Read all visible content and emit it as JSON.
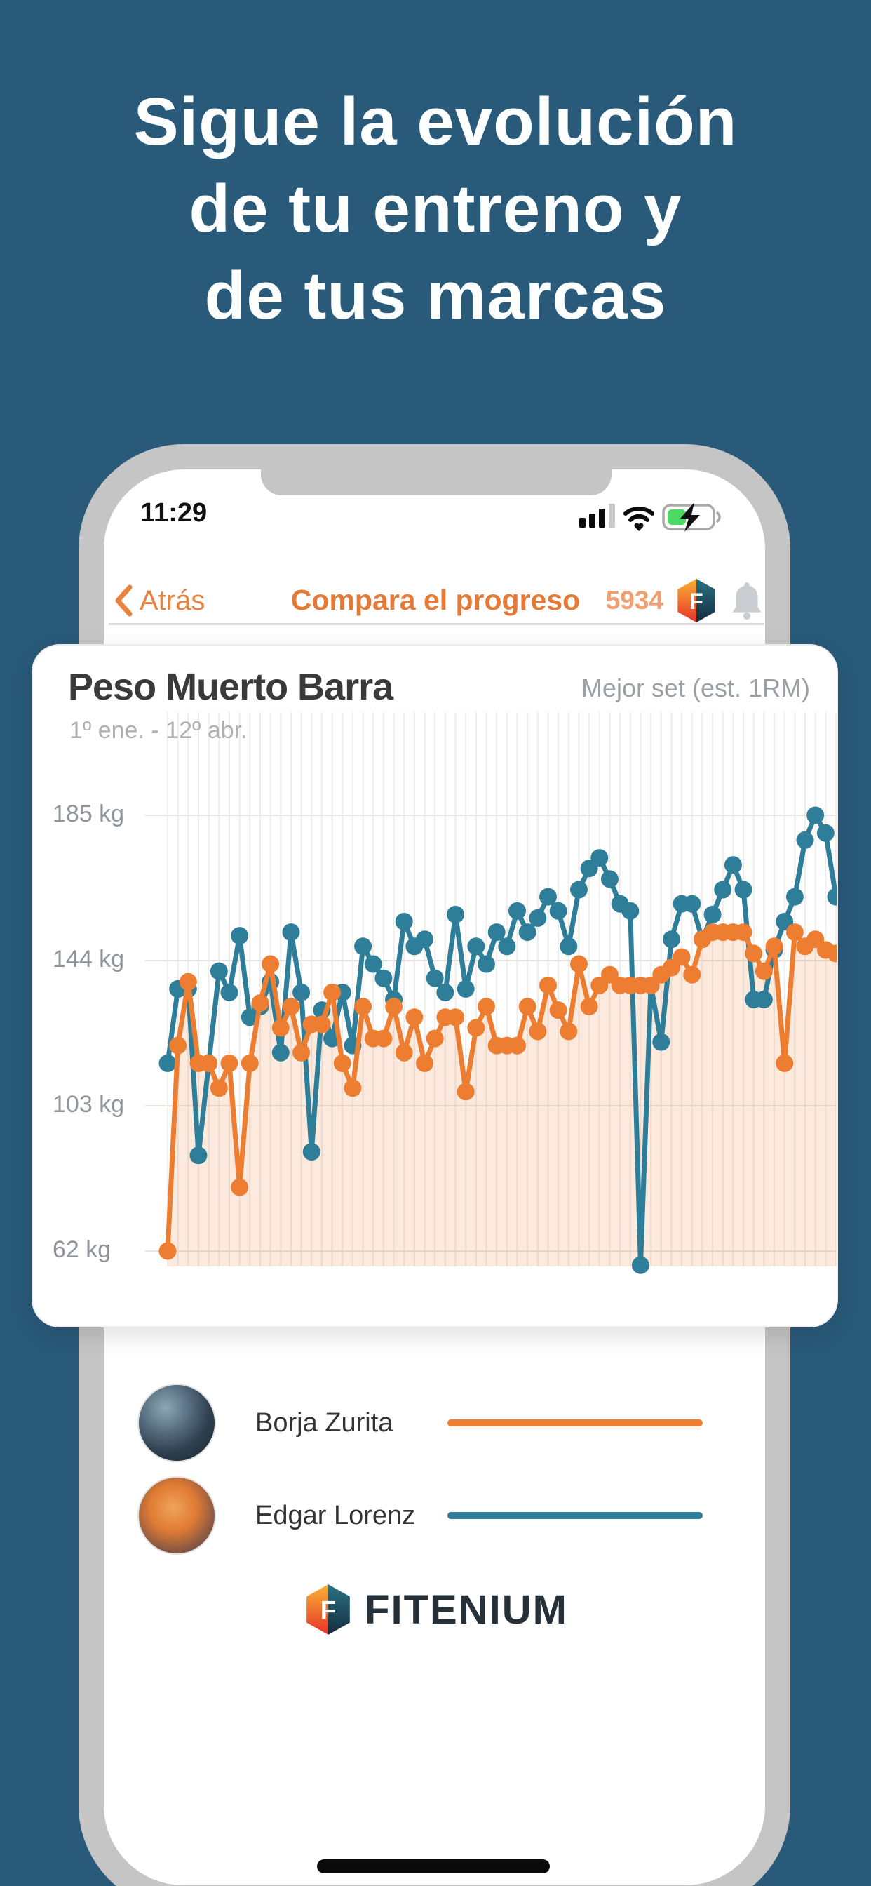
{
  "headline": {
    "lines": [
      "Sigue la evolución",
      "de tu entreno y",
      "de tus marcas"
    ]
  },
  "statusbar": {
    "time": "11:29"
  },
  "navbar": {
    "back_label": "Atrás",
    "title": "Compara el progreso",
    "counter": "5934"
  },
  "card": {
    "title": "Peso Muerto Barra",
    "subtitle": "1º ene. - 12º abr.",
    "metric_label": "Mejor set (est. 1RM)"
  },
  "chart_data": {
    "type": "line",
    "title": "Peso Muerto Barra",
    "subtitle_range": "1º ene. - 12º abr.",
    "metric": "Mejor set (est. 1RM)",
    "unit": "kg",
    "ytick_labels": [
      "185 kg",
      "144 kg",
      "103 kg",
      "62 kg"
    ],
    "ytick_values": [
      185,
      144,
      103,
      62
    ],
    "ylim": [
      55,
      200
    ],
    "grid": true,
    "legend_position": "below",
    "series": [
      {
        "name": "Borja Zurita",
        "color": "#ED7D31",
        "area": true,
        "fill": "rgba(237,125,49,0.16)",
        "values": [
          62,
          120,
          138,
          115,
          115,
          108,
          115,
          80,
          115,
          132,
          143,
          125,
          131,
          118,
          126,
          126,
          135,
          115,
          108,
          131,
          122,
          122,
          131,
          118,
          128,
          115,
          122,
          128,
          128,
          107,
          125,
          131,
          120,
          120,
          120,
          131,
          124,
          137,
          130,
          124,
          143,
          131,
          137,
          140,
          137,
          137,
          137,
          137,
          140,
          142,
          145,
          140,
          150,
          152,
          152,
          152,
          152,
          146,
          141,
          148,
          115,
          152,
          148,
          150,
          147,
          146
        ]
      },
      {
        "name": "Edgar Lorenz",
        "color": "#2E7E99",
        "area": false,
        "values": [
          115,
          136,
          136,
          89,
          115,
          141,
          135,
          151,
          128,
          131,
          138,
          118,
          152,
          135,
          90,
          130,
          122,
          135,
          120,
          148,
          143,
          139,
          133,
          155,
          148,
          150,
          139,
          135,
          157,
          136,
          148,
          143,
          152,
          148,
          158,
          152,
          156,
          162,
          158,
          148,
          164,
          170,
          173,
          167,
          160,
          158,
          58,
          137,
          121,
          150,
          160,
          160,
          150,
          157,
          164,
          171,
          164,
          133,
          133,
          147,
          155,
          162,
          178,
          185,
          180,
          162
        ]
      }
    ]
  },
  "legend": {
    "items": [
      {
        "name": "Borja Zurita",
        "color": "#ED7D31"
      },
      {
        "name": "Edgar Lorenz",
        "color": "#2E7E99"
      }
    ]
  },
  "logo": {
    "text": "FITENIUM"
  },
  "colors": {
    "background": "#295A7A",
    "headline": "#FDFEFE",
    "accent_orange": "#E57936",
    "counter_orange": "#F0A070",
    "chart_orange": "#ED7D31",
    "chart_teal": "#2E7E99",
    "gridline": "#E8E4E0",
    "stripe": "#EFECEA",
    "battery_green": "#4CD964",
    "phone_frame": "#C5C5C5"
  }
}
